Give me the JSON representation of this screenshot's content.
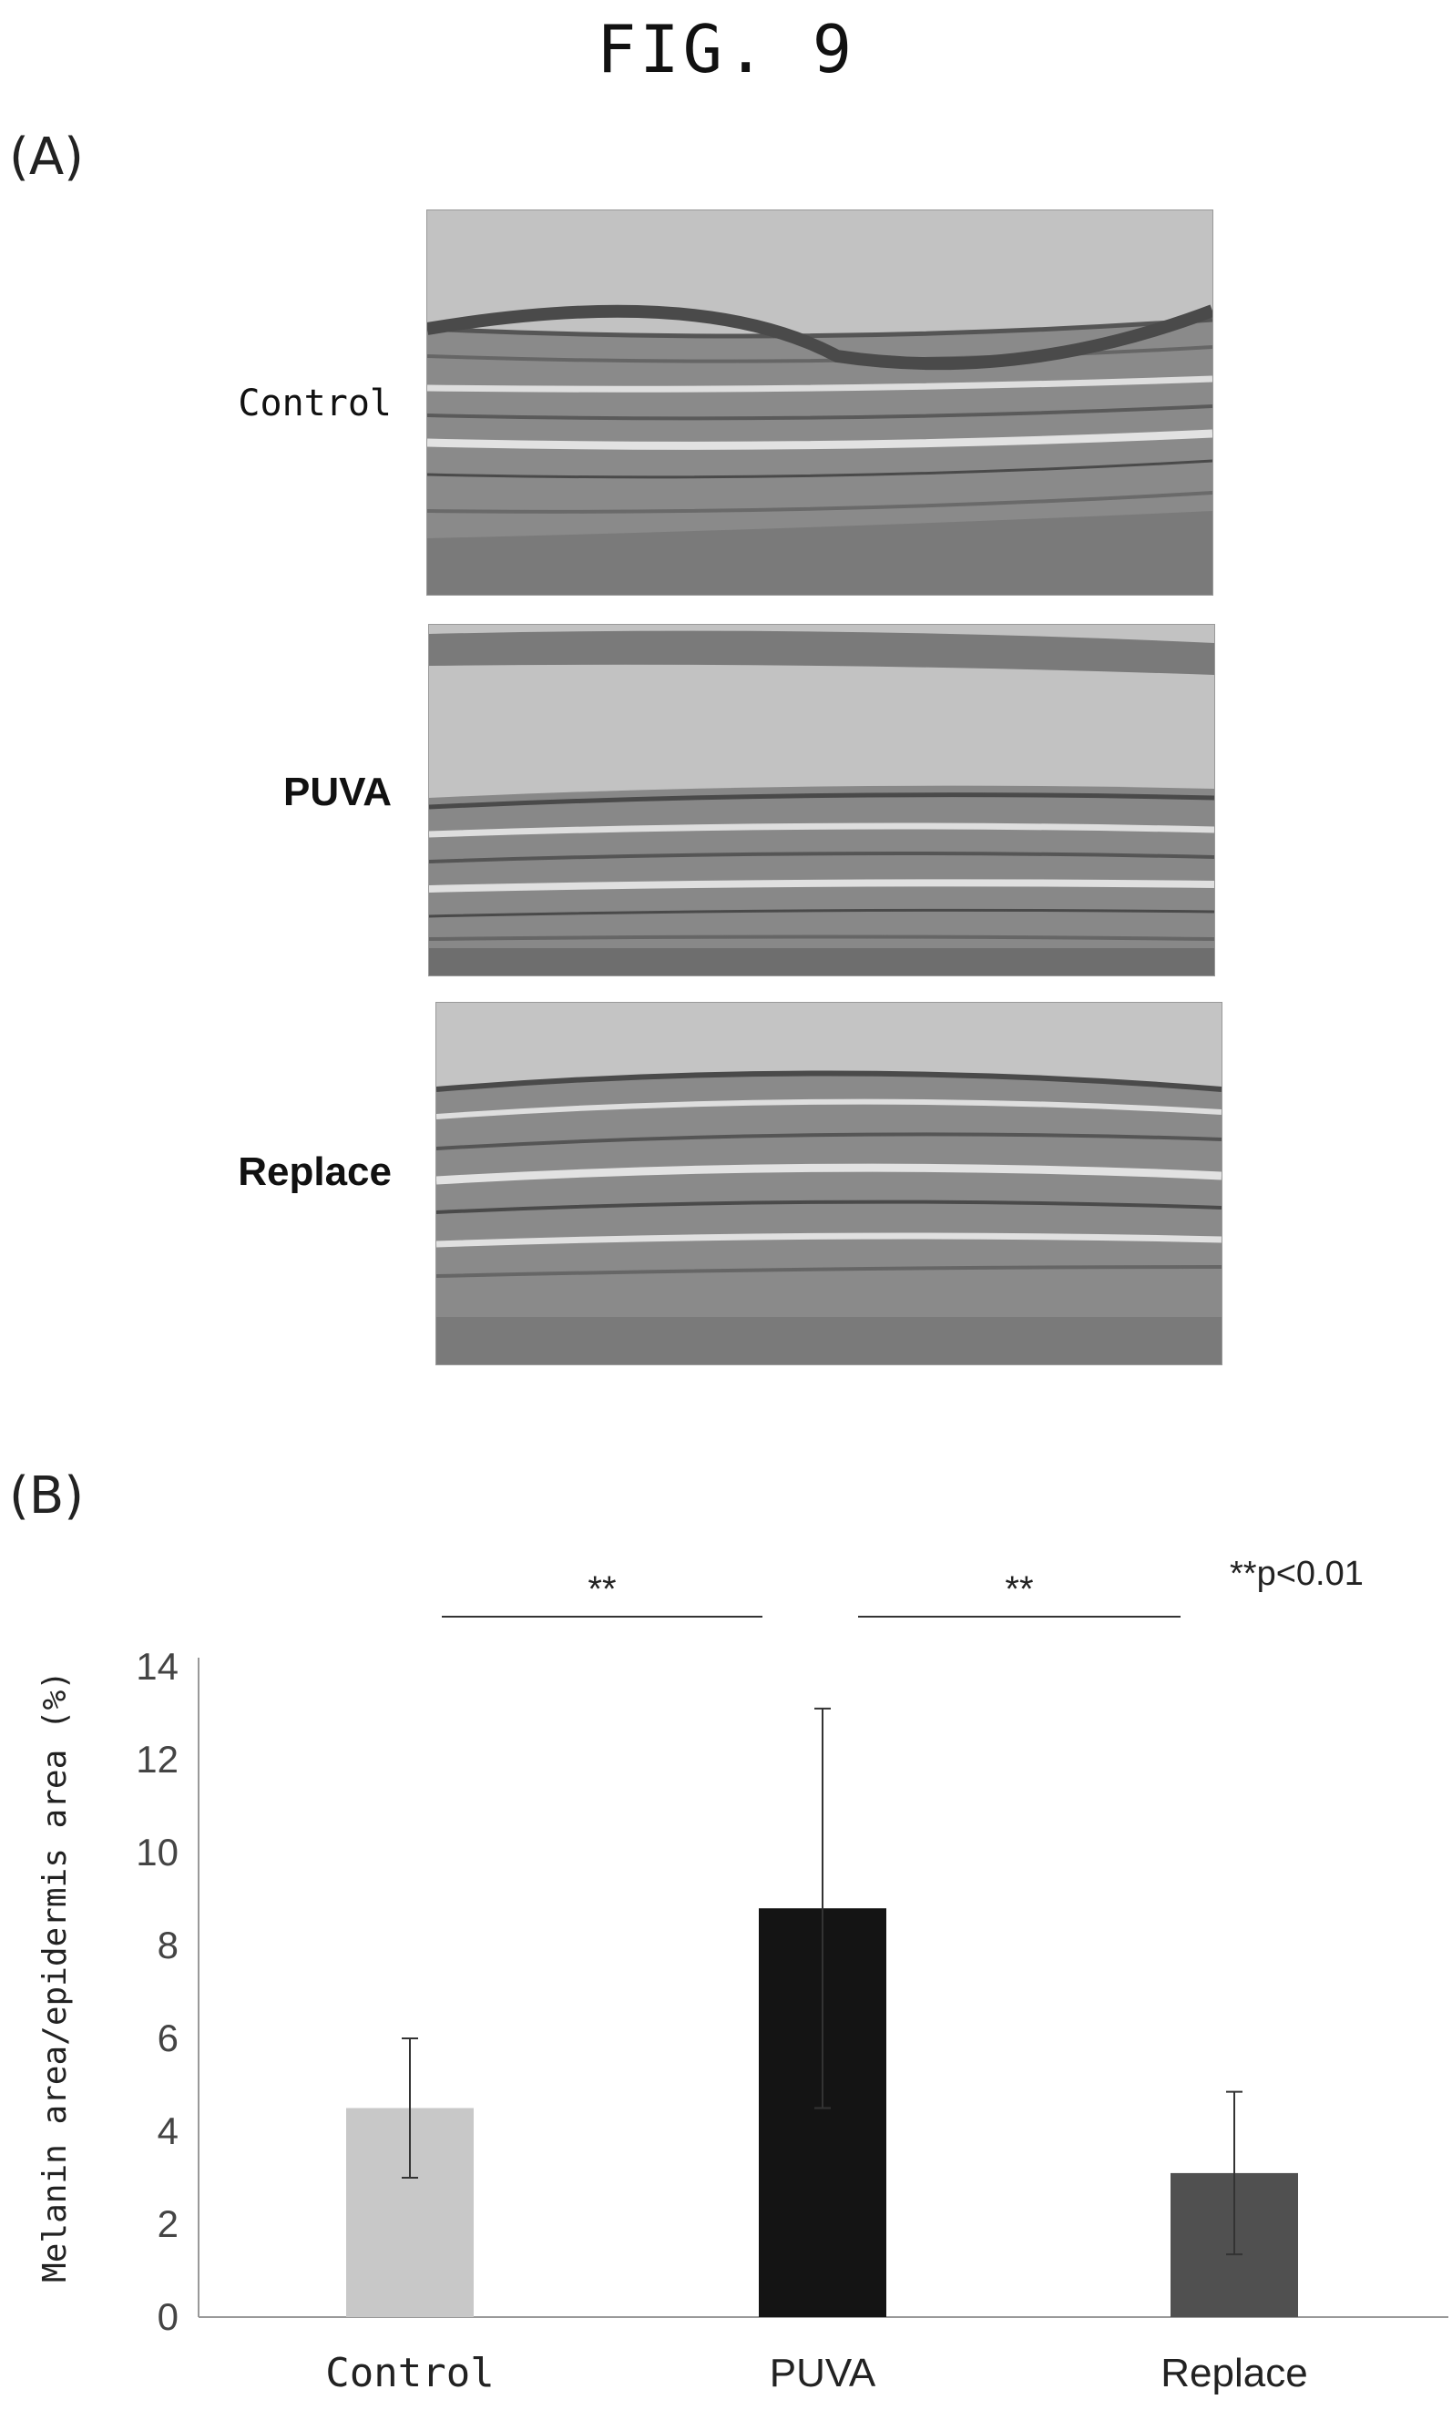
{
  "figure_title": "FIG. 9",
  "panel_a": {
    "label": "(A)",
    "images": [
      {
        "label": "Control"
      },
      {
        "label": "PUVA"
      },
      {
        "label": "Replace"
      }
    ]
  },
  "panel_b": {
    "label": "(B)"
  },
  "colors": {
    "control_bar": "#c8c8c8",
    "puva_bar": "#141414",
    "replace_bar": "#505050",
    "tissue_bg": "#b4b4b4"
  },
  "chart_data": {
    "type": "bar",
    "categories": [
      "Control",
      "PUVA",
      "Replace"
    ],
    "values": [
      4.5,
      8.8,
      3.1
    ],
    "error": [
      1.5,
      4.3,
      1.75
    ],
    "ylabel": "Melanin area/epidermis area (%)",
    "ylim": [
      0,
      14
    ],
    "yticks": [
      0,
      2,
      4,
      6,
      8,
      10,
      12,
      14
    ],
    "grid": false,
    "significance": [
      {
        "from": "Control",
        "to": "PUVA",
        "label": "**"
      },
      {
        "from": "PUVA",
        "to": "Replace",
        "label": "**"
      }
    ],
    "annotation": "**p<0.01"
  }
}
